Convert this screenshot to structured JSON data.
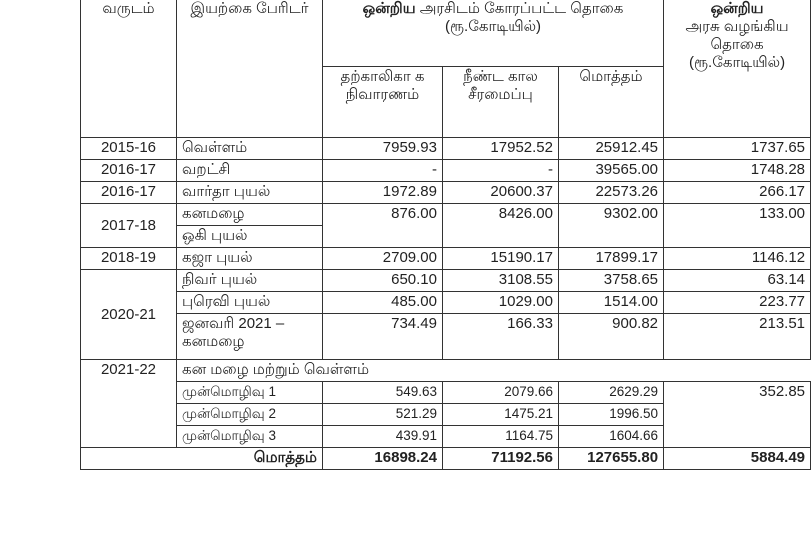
{
  "header": {
    "year": "வருடம்",
    "disaster": "இயற்கை பேரிடர்",
    "requested_bold": "ஒன்றிய",
    "requested_rest": "அரசிடம் கோரப்பட்ட தொகை (ரூ.கோடியில்)",
    "sub_temporary": "தற்காலிகா க நிவாரணம்",
    "sub_permanent": "நீண்ட கால சீரமைப்பு",
    "sub_total": "மொத்தம்",
    "granted_bold": "ஒன்றிய",
    "granted_rest": "அரசு வழங்கிய தொகை (ரூ.கோடியில்)"
  },
  "rows": [
    {
      "year": "2015-16",
      "disaster": "வெள்ளம்",
      "temporary": "7959.93",
      "permanent": "17952.52",
      "total": "25912.45",
      "granted": "1737.65"
    },
    {
      "year": "2016-17",
      "disaster": "வறட்சி",
      "temporary": "-",
      "permanent": "-",
      "total": "39565.00",
      "granted": "1748.28"
    },
    {
      "year": "2016-17",
      "disaster": "வார்தா புயல்",
      "temporary": "1972.89",
      "permanent": "20600.37",
      "total": "22573.26",
      "granted": "266.17"
    },
    {
      "year": "2017-18",
      "disaster": "கனமழை",
      "disaster2": "ஒகி புயல்",
      "temporary": "876.00",
      "permanent": "8426.00",
      "total": "9302.00",
      "granted": "133.00"
    },
    {
      "year": "2018-19",
      "disaster": "கஜா புயல்",
      "temporary": "2709.00",
      "permanent": "15190.17",
      "total": "17899.17",
      "granted": "1146.12"
    },
    {
      "year": "2020-21",
      "disaster": "நிவர் புயல்",
      "temporary": "650.10",
      "permanent": "3108.55",
      "total": "3758.65",
      "granted": "63.14"
    },
    {
      "disaster": "புரெவி புயல்",
      "temporary": "485.00",
      "permanent": "1029.00",
      "total": "1514.00",
      "granted": "223.77"
    },
    {
      "disaster": "ஜனவரி 2021 – கனமழை",
      "temporary": "734.49",
      "permanent": "166.33",
      "total": "900.82",
      "granted": "213.51"
    },
    {
      "year": "2021-22",
      "disaster": "கன மழை மற்றும் வெள்ளம்",
      "granted": "352.85"
    },
    {
      "disaster": "முன்மொழிவு 1",
      "temporary": "549.63",
      "permanent": "2079.66",
      "total": "2629.29"
    },
    {
      "disaster": "முன்மொழிவு 2",
      "temporary": "521.29",
      "permanent": "1475.21",
      "total": "1996.50"
    },
    {
      "disaster": "முன்மொழிவு 3",
      "temporary": "439.91",
      "permanent": "1164.75",
      "total": "1604.66"
    }
  ],
  "total": {
    "label": "மொத்தம்",
    "temporary": "16898.24",
    "permanent": "71192.56",
    "total": "127655.80",
    "granted": "5884.49"
  }
}
